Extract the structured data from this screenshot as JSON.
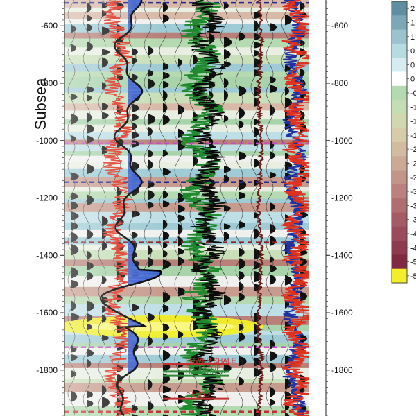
{
  "chart_data": {
    "type": "line",
    "ylabel": "Subsea",
    "ylim": [
      -1960,
      -510
    ],
    "y_ticks": [
      -600,
      -800,
      -1000,
      -1200,
      -1400,
      -1600,
      -1800
    ],
    "y_tick_labels": [
      "-600",
      "-800",
      "-1000",
      "-1200",
      "-1400",
      "-1600",
      "-1800"
    ],
    "colorbar": {
      "labels": [
        "2",
        "1",
        "1",
        "0",
        "0",
        "0",
        "-0",
        "-1",
        "-1",
        "-1",
        "-2",
        "-2",
        "-2",
        "-3",
        "-3",
        "-3",
        "-4",
        "-4",
        "-5",
        "-5"
      ],
      "colors": [
        "#5f8ea0",
        "#7ba7b6",
        "#9cc3cd",
        "#b8dbe2",
        "#d6ecf0",
        "#ffffff",
        "#b5d9b0",
        "#c6dcb6",
        "#d2d7b2",
        "#d6ccab",
        "#d2bca1",
        "#cba996",
        "#c3958a",
        "#ba817e",
        "#b06e72",
        "#a55b66",
        "#9a4a5a",
        "#8f3a4e",
        "#7f2a40",
        "#f2ef2a"
      ]
    },
    "horizons": [
      {
        "depth": -520,
        "color": "#1f2b8f"
      },
      {
        "depth": -1010,
        "color": "#c24ec2"
      },
      {
        "depth": -1145,
        "color": "#1f2b8f"
      },
      {
        "depth": -1355,
        "color": "#8f1f1f"
      },
      {
        "depth": -1720,
        "color": "#c24ec2"
      },
      {
        "depth": -1945,
        "color": "#c43030"
      }
    ],
    "markers": [
      {
        "label": "LOWER SHALE",
        "depth": -1780,
        "color": "#c43030"
      },
      {
        "label": "SAND TOP",
        "depth": -1805,
        "color": "#2e8b3a"
      },
      {
        "label": "SAND BASE",
        "depth": -1820,
        "color": "#2e8b3a"
      },
      {
        "label": "SAND 2",
        "depth": -1900,
        "color": "#c43030"
      }
    ]
  }
}
